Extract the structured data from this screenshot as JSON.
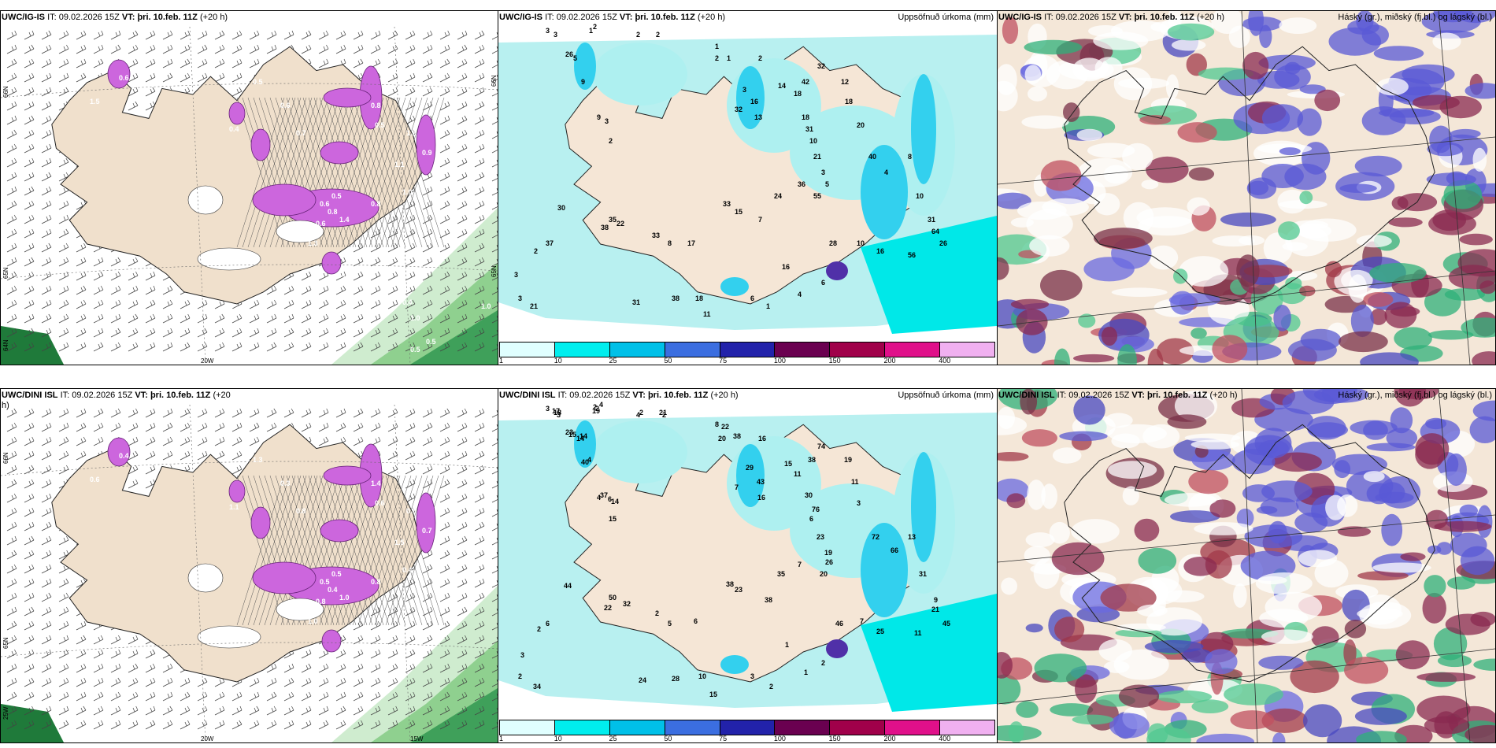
{
  "titles": {
    "p1": {
      "model": "UWC/IG-IS",
      "it_label": "IT:",
      "it": "09.02.2026 15Z",
      "vt_label": "VT:",
      "vt": "þri. 10.feb. 11Z",
      "lead": "(+20 h)"
    },
    "p2": {
      "model": "UWC/IG-IS",
      "it_label": "IT:",
      "it": "09.02.2026 15Z",
      "vt_label": "VT:",
      "vt": "þri. 10.feb. 11Z",
      "lead": "(+20 h)",
      "right": "Uppsöfnuð úrkoma (mm)"
    },
    "p3": {
      "model": "UWC/IG-IS",
      "it_label": "IT:",
      "it": "09.02.2026 15Z",
      "vt_label": "VT:",
      "vt": "þri. 10.feb. 11Z",
      "lead": "(+20 h)",
      "right": "Háský (gr.), miðský (fj.bl.) og lágský (bl.)"
    },
    "p4": {
      "model": "UWC/DINI ISL",
      "it_label": "IT:",
      "it": "09.02.2026 15Z",
      "vt_label": "VT:",
      "vt": "þri. 10.feb. 11Z",
      "lead": "(+20",
      "lead2": "h)"
    },
    "p5": {
      "model": "UWC/DINI ISL",
      "it_label": "IT:",
      "it": "09.02.2026 15Z",
      "vt_label": "VT:",
      "vt": "þri. 10.feb. 11Z",
      "lead": "(+20 h)",
      "right": "Uppsöfnuð úrkoma (mm)"
    },
    "p6": {
      "model": "UWC/DINI ISL",
      "it_label": "IT:",
      "it": "09.02.2026 15Z",
      "vt_label": "VT:",
      "vt": "þri. 10.feb. 11Z",
      "lead": "(+20 h)",
      "right": "Háský (gr.), miðský (fj.bl.) og lágský (bl.)"
    }
  },
  "axes": {
    "lat66": "66N",
    "lat65": "65N",
    "lat64": "64N",
    "lon20": "20W",
    "lon15": "15W",
    "lon25": "25W"
  },
  "colorbar": {
    "ticks": [
      "1",
      "10",
      "25",
      "50",
      "75",
      "100",
      "150",
      "200",
      "400"
    ],
    "colors": [
      "#e0ffff",
      "#00eeee",
      "#00c0e8",
      "#3b6ee0",
      "#2222aa",
      "#6a0050",
      "#a0004a",
      "#e0108a",
      "#f0b0f0"
    ]
  },
  "precip_top_labels": [
    "3",
    "3",
    "1",
    "2",
    "2",
    "2",
    "1",
    "26",
    "5",
    "9",
    "9",
    "3",
    "2",
    "2",
    "1",
    "2",
    "3",
    "16",
    "32",
    "13",
    "14",
    "18",
    "18",
    "31",
    "10",
    "21",
    "42",
    "32",
    "12",
    "18",
    "20",
    "40",
    "4",
    "8",
    "10",
    "31",
    "64",
    "26",
    "56",
    "16",
    "10",
    "28",
    "5",
    "3",
    "55",
    "36",
    "24",
    "7",
    "15",
    "33",
    "17",
    "8",
    "33",
    "22",
    "35",
    "38",
    "30",
    "37",
    "2",
    "3",
    "3",
    "21",
    "31",
    "38",
    "18",
    "11",
    "6",
    "1",
    "4",
    "6",
    "16"
  ],
  "precip_bot_labels": [
    "3",
    "3",
    "2",
    "2",
    "2",
    "2",
    "8",
    "15",
    "14",
    "40",
    "37",
    "14",
    "15",
    "20",
    "38",
    "16",
    "29",
    "43",
    "7",
    "16",
    "15",
    "11",
    "30",
    "76",
    "6",
    "23",
    "38",
    "74",
    "19",
    "11",
    "3",
    "72",
    "66",
    "13",
    "31",
    "9",
    "21",
    "45",
    "11",
    "25",
    "7",
    "46",
    "26",
    "19",
    "20",
    "7",
    "35",
    "38",
    "23",
    "38",
    "6",
    "5",
    "2",
    "32",
    "50",
    "22",
    "44",
    "6",
    "2",
    "3",
    "2",
    "34",
    "24",
    "28",
    "10",
    "15",
    "3",
    "2",
    "1",
    "2",
    "1",
    "17",
    "18",
    "19",
    "4",
    "4",
    "21",
    "22",
    "23",
    "14",
    "4",
    "4",
    "6"
  ],
  "wind_top_labels": [
    "0.5",
    "0.6",
    "1.5",
    "0.5",
    "0.4",
    "0.6",
    "0.7",
    "0.8",
    "1.2",
    "0.5",
    "0.9",
    "1.1",
    "1.0",
    "0.6",
    "0.8",
    "1.4",
    "0.6",
    "0.5",
    "0.8",
    "1.3",
    "0.5",
    "0.2",
    "0.4",
    "1.0",
    "0.5",
    "0.5",
    "1.0"
  ],
  "wind_bot_labels": [
    "0.5",
    "0.4",
    "0.6",
    "1.3",
    "1.1",
    "0.3",
    "0.8",
    "1.4",
    "0.5",
    "0.6",
    "0.7",
    "1.5",
    "0.4",
    "0.5",
    "0.4",
    "1.0",
    "0.8",
    "0.5",
    "0.8",
    "1.0"
  ]
}
